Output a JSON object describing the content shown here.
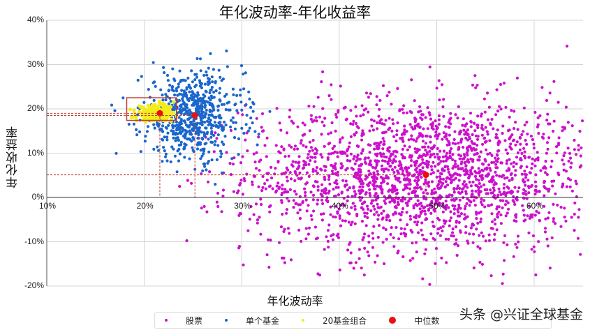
{
  "chart_data": {
    "type": "scatter",
    "title": "年化波动率-年化收益率",
    "xlabel": "年化波动率",
    "ylabel": "年化收益率",
    "xlim": [
      10,
      65
    ],
    "ylim": [
      -20,
      40
    ],
    "x_ticks": [
      "10%",
      "20%",
      "30%",
      "40%",
      "50%",
      "60%"
    ],
    "y_ticks": [
      "40%",
      "30%",
      "20%",
      "10%",
      "0%",
      "-10%",
      "-20%"
    ],
    "grid": true,
    "legend_position": "bottom",
    "legend": [
      "股票",
      "单个基金",
      "20基金组合",
      "中位数"
    ],
    "series": [
      {
        "name": "股票",
        "color": "#cc11cc",
        "count": 2100,
        "x_mean": 48.5,
        "x_sd": 9.0,
        "y_mean": 5.0,
        "y_sd": 8.5,
        "x_range": [
          22,
          65
        ],
        "y_range": [
          -20,
          40
        ]
      },
      {
        "name": "单个基金",
        "color": "#1a66cc",
        "count": 650,
        "x_mean": 25.0,
        "x_sd": 2.6,
        "y_mean": 18.5,
        "y_sd": 5.0,
        "x_range": [
          14,
          33
        ],
        "y_range": [
          1,
          34
        ]
      },
      {
        "name": "20基金组合",
        "color": "#f2ec1a",
        "count": 220,
        "x_mean": 21.2,
        "x_sd": 1.0,
        "y_mean": 19.0,
        "y_sd": 0.9,
        "x_range": [
          18.5,
          24
        ],
        "y_range": [
          17,
          22
        ]
      },
      {
        "name": "中位数",
        "color": "#e81010",
        "points": [
          {
            "label": "20基金组合中位数",
            "x": 21.6,
            "y": 19.0
          },
          {
            "label": "单个基金中位数",
            "x": 25.2,
            "y": 18.5
          },
          {
            "label": "股票中位数",
            "x": 48.9,
            "y": 5.1
          }
        ]
      }
    ],
    "annotations": {
      "highlight_box": {
        "x0": 18.2,
        "x1": 23.3,
        "y0": 17.4,
        "y1": 22.5,
        "color": "#c0392b"
      },
      "median_guides": "red dashed lines from each median to both axes"
    }
  },
  "watermark": "头条 @兴证全球基金"
}
